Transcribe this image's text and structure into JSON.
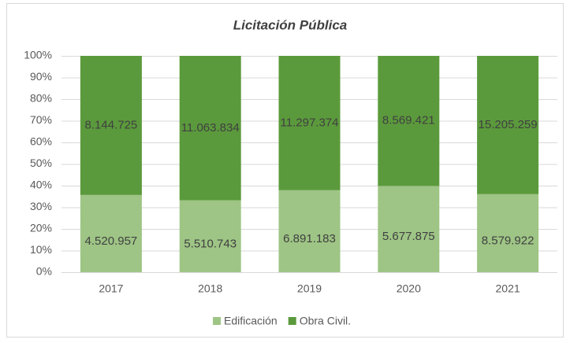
{
  "chart_data": {
    "type": "stacked_percent_bar",
    "title": "Licitación Pública",
    "categories": [
      "2017",
      "2018",
      "2019",
      "2020",
      "2021"
    ],
    "series": [
      {
        "name": "Edificación",
        "color": "#9ec585",
        "values": [
          4520957,
          5510743,
          6891183,
          5677875,
          8579922
        ],
        "value_labels": [
          "4.520.957",
          "5.510.743",
          "6.891.183",
          "5.677.875",
          "8.579.922"
        ]
      },
      {
        "name": "Obra Civil.",
        "color": "#5b9a3c",
        "values": [
          8144725,
          11063834,
          11297374,
          8569421,
          15205259
        ],
        "value_labels": [
          "8.144.725",
          "11.063.834",
          "11.297.374",
          "8.569.421",
          "15.205.259"
        ]
      }
    ],
    "ylim": [
      0,
      100
    ],
    "yticks": [
      {
        "value": 0,
        "label": "0%"
      },
      {
        "value": 10,
        "label": "10%"
      },
      {
        "value": 20,
        "label": "20%"
      },
      {
        "value": 30,
        "label": "30%"
      },
      {
        "value": 40,
        "label": "40%"
      },
      {
        "value": 50,
        "label": "50%"
      },
      {
        "value": 60,
        "label": "60%"
      },
      {
        "value": 70,
        "label": "70%"
      },
      {
        "value": 80,
        "label": "80%"
      },
      {
        "value": 90,
        "label": "90%"
      },
      {
        "value": 100,
        "label": "100%"
      }
    ],
    "grid": true,
    "legend": "bottom"
  }
}
